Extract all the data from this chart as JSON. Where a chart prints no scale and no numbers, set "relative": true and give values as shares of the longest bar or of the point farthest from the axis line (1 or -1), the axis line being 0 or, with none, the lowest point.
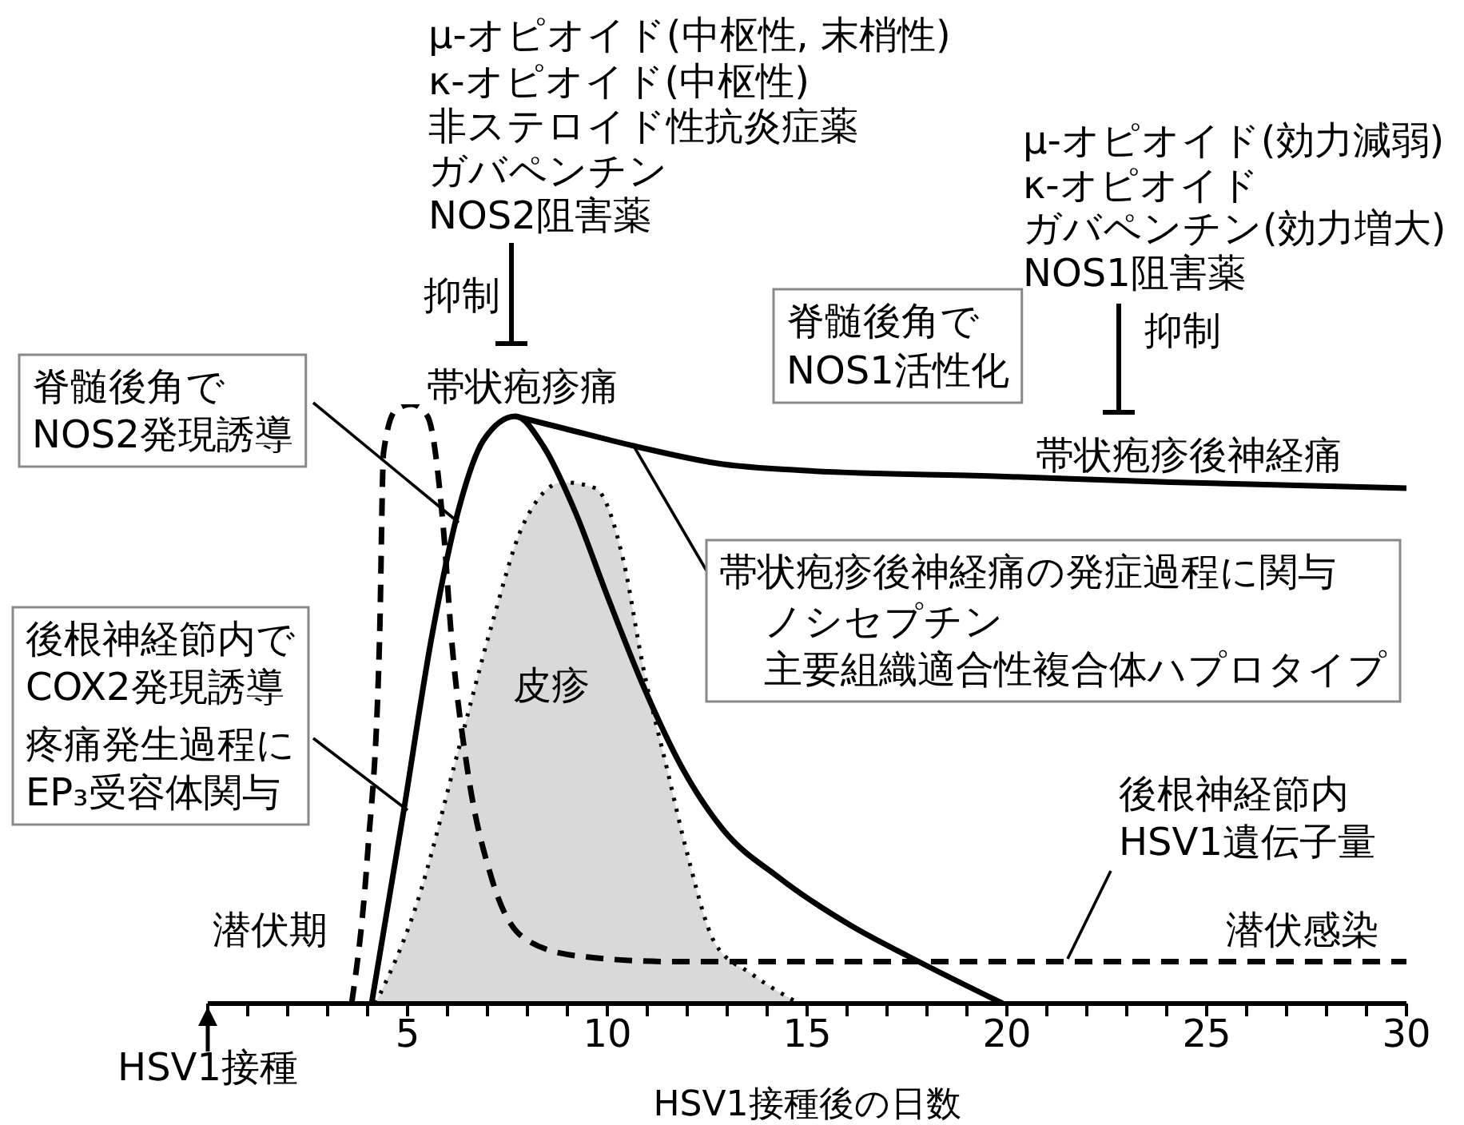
{
  "chart_data": {
    "type": "line",
    "relative": true,
    "xlabel": "HSV1接種後の日数",
    "xlim": [
      0,
      30
    ],
    "xticks": [
      {
        "value": 0,
        "label": null
      },
      {
        "value": 1,
        "label": null
      },
      {
        "value": 2,
        "label": null
      },
      {
        "value": 3,
        "label": null
      },
      {
        "value": 4,
        "label": null
      },
      5,
      {
        "value": 6,
        "label": null
      },
      {
        "value": 7,
        "label": null
      },
      {
        "value": 8,
        "label": null
      },
      {
        "value": 9,
        "label": null
      },
      10,
      {
        "value": 11,
        "label": null
      },
      {
        "value": 12,
        "label": null
      },
      {
        "value": 13,
        "label": null
      },
      {
        "value": 14,
        "label": null
      },
      15,
      {
        "value": 16,
        "label": null
      },
      {
        "value": 17,
        "label": null
      },
      {
        "value": 18,
        "label": null
      },
      {
        "value": 19,
        "label": null
      },
      20,
      {
        "value": 21,
        "label": null
      },
      {
        "value": 22,
        "label": null
      },
      {
        "value": 23,
        "label": null
      },
      {
        "value": 24,
        "label": null
      },
      25,
      {
        "value": 26,
        "label": null
      },
      {
        "value": 27,
        "label": null
      },
      {
        "value": 28,
        "label": null
      },
      {
        "value": 29,
        "label": null
      },
      30
    ],
    "series": [
      {
        "type": "area",
        "color": "#d9d9d9",
        "line_style": "dotted",
        "x": [
          4.2,
          5.2,
          6.3,
          7.1,
          7.9,
          8.9,
          9.7,
          10.4,
          10.9,
          11.5,
          12,
          12.7,
          13.6,
          14.8
        ],
        "values": [
          0,
          0.16,
          0.43,
          0.63,
          0.8,
          0.87,
          0.86,
          0.74,
          0.56,
          0.39,
          0.25,
          0.1,
          0.05,
          0
        ]
      },
      {
        "color": "#000000",
        "line_style": "dashed",
        "x": [
          3.6,
          4,
          4.3,
          4.4,
          4.7,
          5.1,
          5.5,
          5.9,
          6.1,
          6.5,
          7.1,
          7.9,
          9.2,
          11.6,
          20,
          30
        ],
        "values": [
          0,
          0.25,
          0.61,
          0.92,
          0.99,
          1,
          0.98,
          0.79,
          0.61,
          0.39,
          0.21,
          0.11,
          0.08,
          0.07,
          0.07,
          0.07
        ]
      },
      {
        "color": "#000000",
        "line_style": "solid",
        "x": [
          4.1,
          4.9,
          5.6,
          6.3,
          6.9,
          7.7,
          8.4,
          9.2,
          10,
          10.9,
          11.9,
          12.9,
          14.3,
          16.1,
          17.5,
          19.9
        ],
        "values": [
          0,
          0.32,
          0.61,
          0.83,
          0.94,
          0.98,
          0.93,
          0.82,
          0.68,
          0.53,
          0.39,
          0.29,
          0.21,
          0.13,
          0.08,
          0
        ]
      },
      {
        "color": "#000000",
        "line_style": "solid",
        "x": [
          7.7,
          8.9,
          10.7,
          12.9,
          14.8,
          19.7,
          24.1,
          30
        ],
        "values": [
          0.98,
          0.96,
          0.93,
          0.9,
          0.89,
          0.88,
          0.87,
          0.86
        ]
      }
    ],
    "annotations": [
      "μ-オピオイド(中枢性, 末梢性)",
      "κ-オピオイド(中枢性)",
      "非ステロイド性抗炎症薬",
      "ガバペンチン",
      "NOS2阻害薬",
      "抑制",
      "帯状疱疹痛",
      "μ-オピオイド(効力減弱)",
      "κ-オピオイド",
      "ガバペンチン(効力増大)",
      "NOS1阻害薬",
      "抑制",
      "帯状疱疹後神経痛",
      "脊髄後角で",
      "NOS1活性化",
      "脊髄後角で",
      "NOS2発現誘導",
      "帯状疱疹後神経痛の発症過程に関与",
      "ノシセプチン",
      "主要組織適合性複合体ハプロタイプ",
      "皮疹",
      "後根神経節内で",
      "COX2発現誘導",
      "疼痛発生過程に",
      "EP₃受容体関与",
      "後根神経節内",
      "HSV1遺伝子量",
      "潜伏期",
      "潜伏感染",
      "HSV1接種"
    ]
  }
}
